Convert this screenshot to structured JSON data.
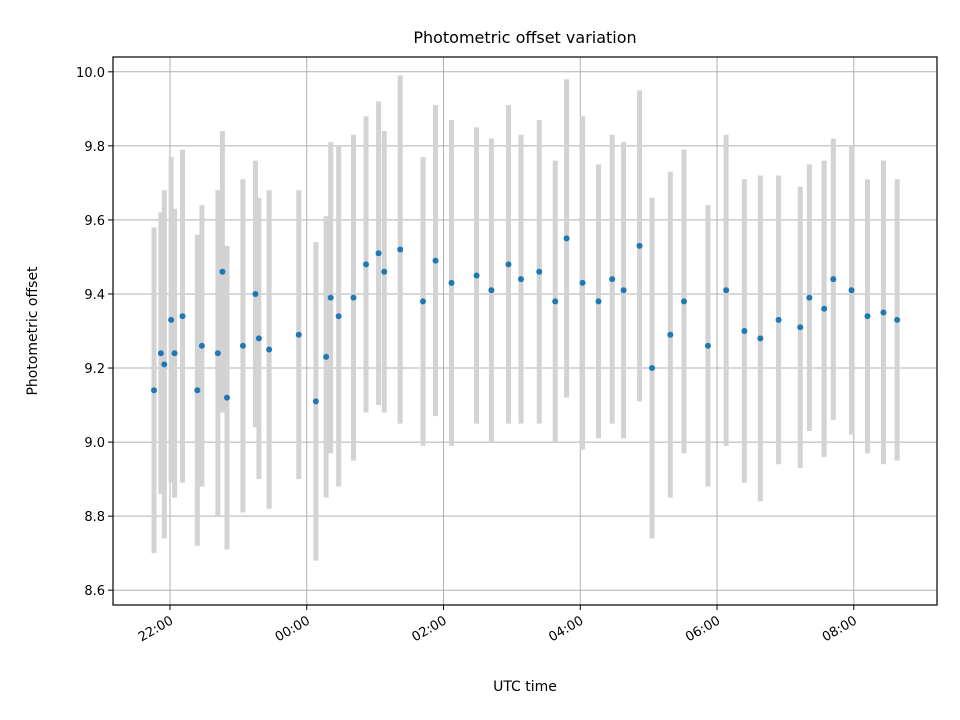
{
  "chart_data": {
    "type": "scatter",
    "title": "Photometric offset variation",
    "xlabel": "UTC time",
    "ylabel": "Photometric offset",
    "grid": true,
    "xlim": [
      "21:10",
      "09:13"
    ],
    "ylim": [
      8.56,
      10.04
    ],
    "x_tick_labels": [
      "22:00",
      "00:00",
      "02:00",
      "04:00",
      "06:00",
      "08:00"
    ],
    "y_tick_labels": [
      "8.6",
      "8.8",
      "9.0",
      "9.2",
      "9.4",
      "9.6",
      "9.8",
      "10.0"
    ],
    "y_ticks": [
      8.6,
      8.8,
      9.0,
      9.2,
      9.4,
      9.6,
      9.8,
      10.0
    ],
    "colors": {
      "points": "#1f77b4",
      "errorbars": "#d3d3d3",
      "grid": "#b0b0b0"
    },
    "series": [
      {
        "x": [
          "21:46",
          "21:52",
          "21:55",
          "22:01",
          "22:04",
          "22:11",
          "22:24",
          "22:28",
          "22:42",
          "22:46",
          "22:50",
          "23:04",
          "23:15",
          "23:18",
          "23:27",
          "23:53",
          "00:08",
          "00:17",
          "00:21",
          "00:28",
          "00:41",
          "00:52",
          "01:03",
          "01:08",
          "01:22",
          "01:42",
          "01:53",
          "02:07",
          "02:29",
          "02:42",
          "02:57",
          "03:08",
          "03:24",
          "03:38",
          "03:48",
          "04:02",
          "04:16",
          "04:28",
          "04:38",
          "04:52",
          "05:03",
          "05:19",
          "05:31",
          "05:52",
          "06:08",
          "06:24",
          "06:38",
          "06:54",
          "07:13",
          "07:21",
          "07:34",
          "07:42",
          "07:58",
          "08:12",
          "08:26",
          "08:38"
        ],
        "y": [
          9.14,
          9.24,
          9.21,
          9.33,
          9.24,
          9.34,
          9.14,
          9.26,
          9.24,
          9.46,
          9.12,
          9.26,
          9.4,
          9.28,
          9.25,
          9.29,
          9.11,
          9.23,
          9.39,
          9.34,
          9.39,
          9.48,
          9.51,
          9.46,
          9.52,
          9.38,
          9.49,
          9.43,
          9.45,
          9.41,
          9.48,
          9.44,
          9.46,
          9.38,
          9.55,
          9.43,
          9.38,
          9.44,
          9.41,
          9.53,
          9.2,
          9.29,
          9.38,
          9.26,
          9.41,
          9.3,
          9.28,
          9.33,
          9.31,
          9.39,
          9.36,
          9.44,
          9.41,
          9.34,
          9.35,
          9.33
        ],
        "yerr": [
          0.44,
          0.38,
          0.47,
          0.44,
          0.39,
          0.45,
          0.42,
          0.38,
          0.44,
          0.38,
          0.41,
          0.45,
          0.36,
          0.38,
          0.43,
          0.39,
          0.43,
          0.38,
          0.42,
          0.46,
          0.44,
          0.4,
          0.41,
          0.38,
          0.47,
          0.39,
          0.42,
          0.44,
          0.4,
          0.41,
          0.43,
          0.39,
          0.41,
          0.38,
          0.43,
          0.45,
          0.37,
          0.39,
          0.4,
          0.42,
          0.46,
          0.44,
          0.41,
          0.38,
          0.42,
          0.41,
          0.44,
          0.39,
          0.38,
          0.36,
          0.4,
          0.38,
          0.39,
          0.37,
          0.41,
          0.38
        ]
      }
    ]
  }
}
